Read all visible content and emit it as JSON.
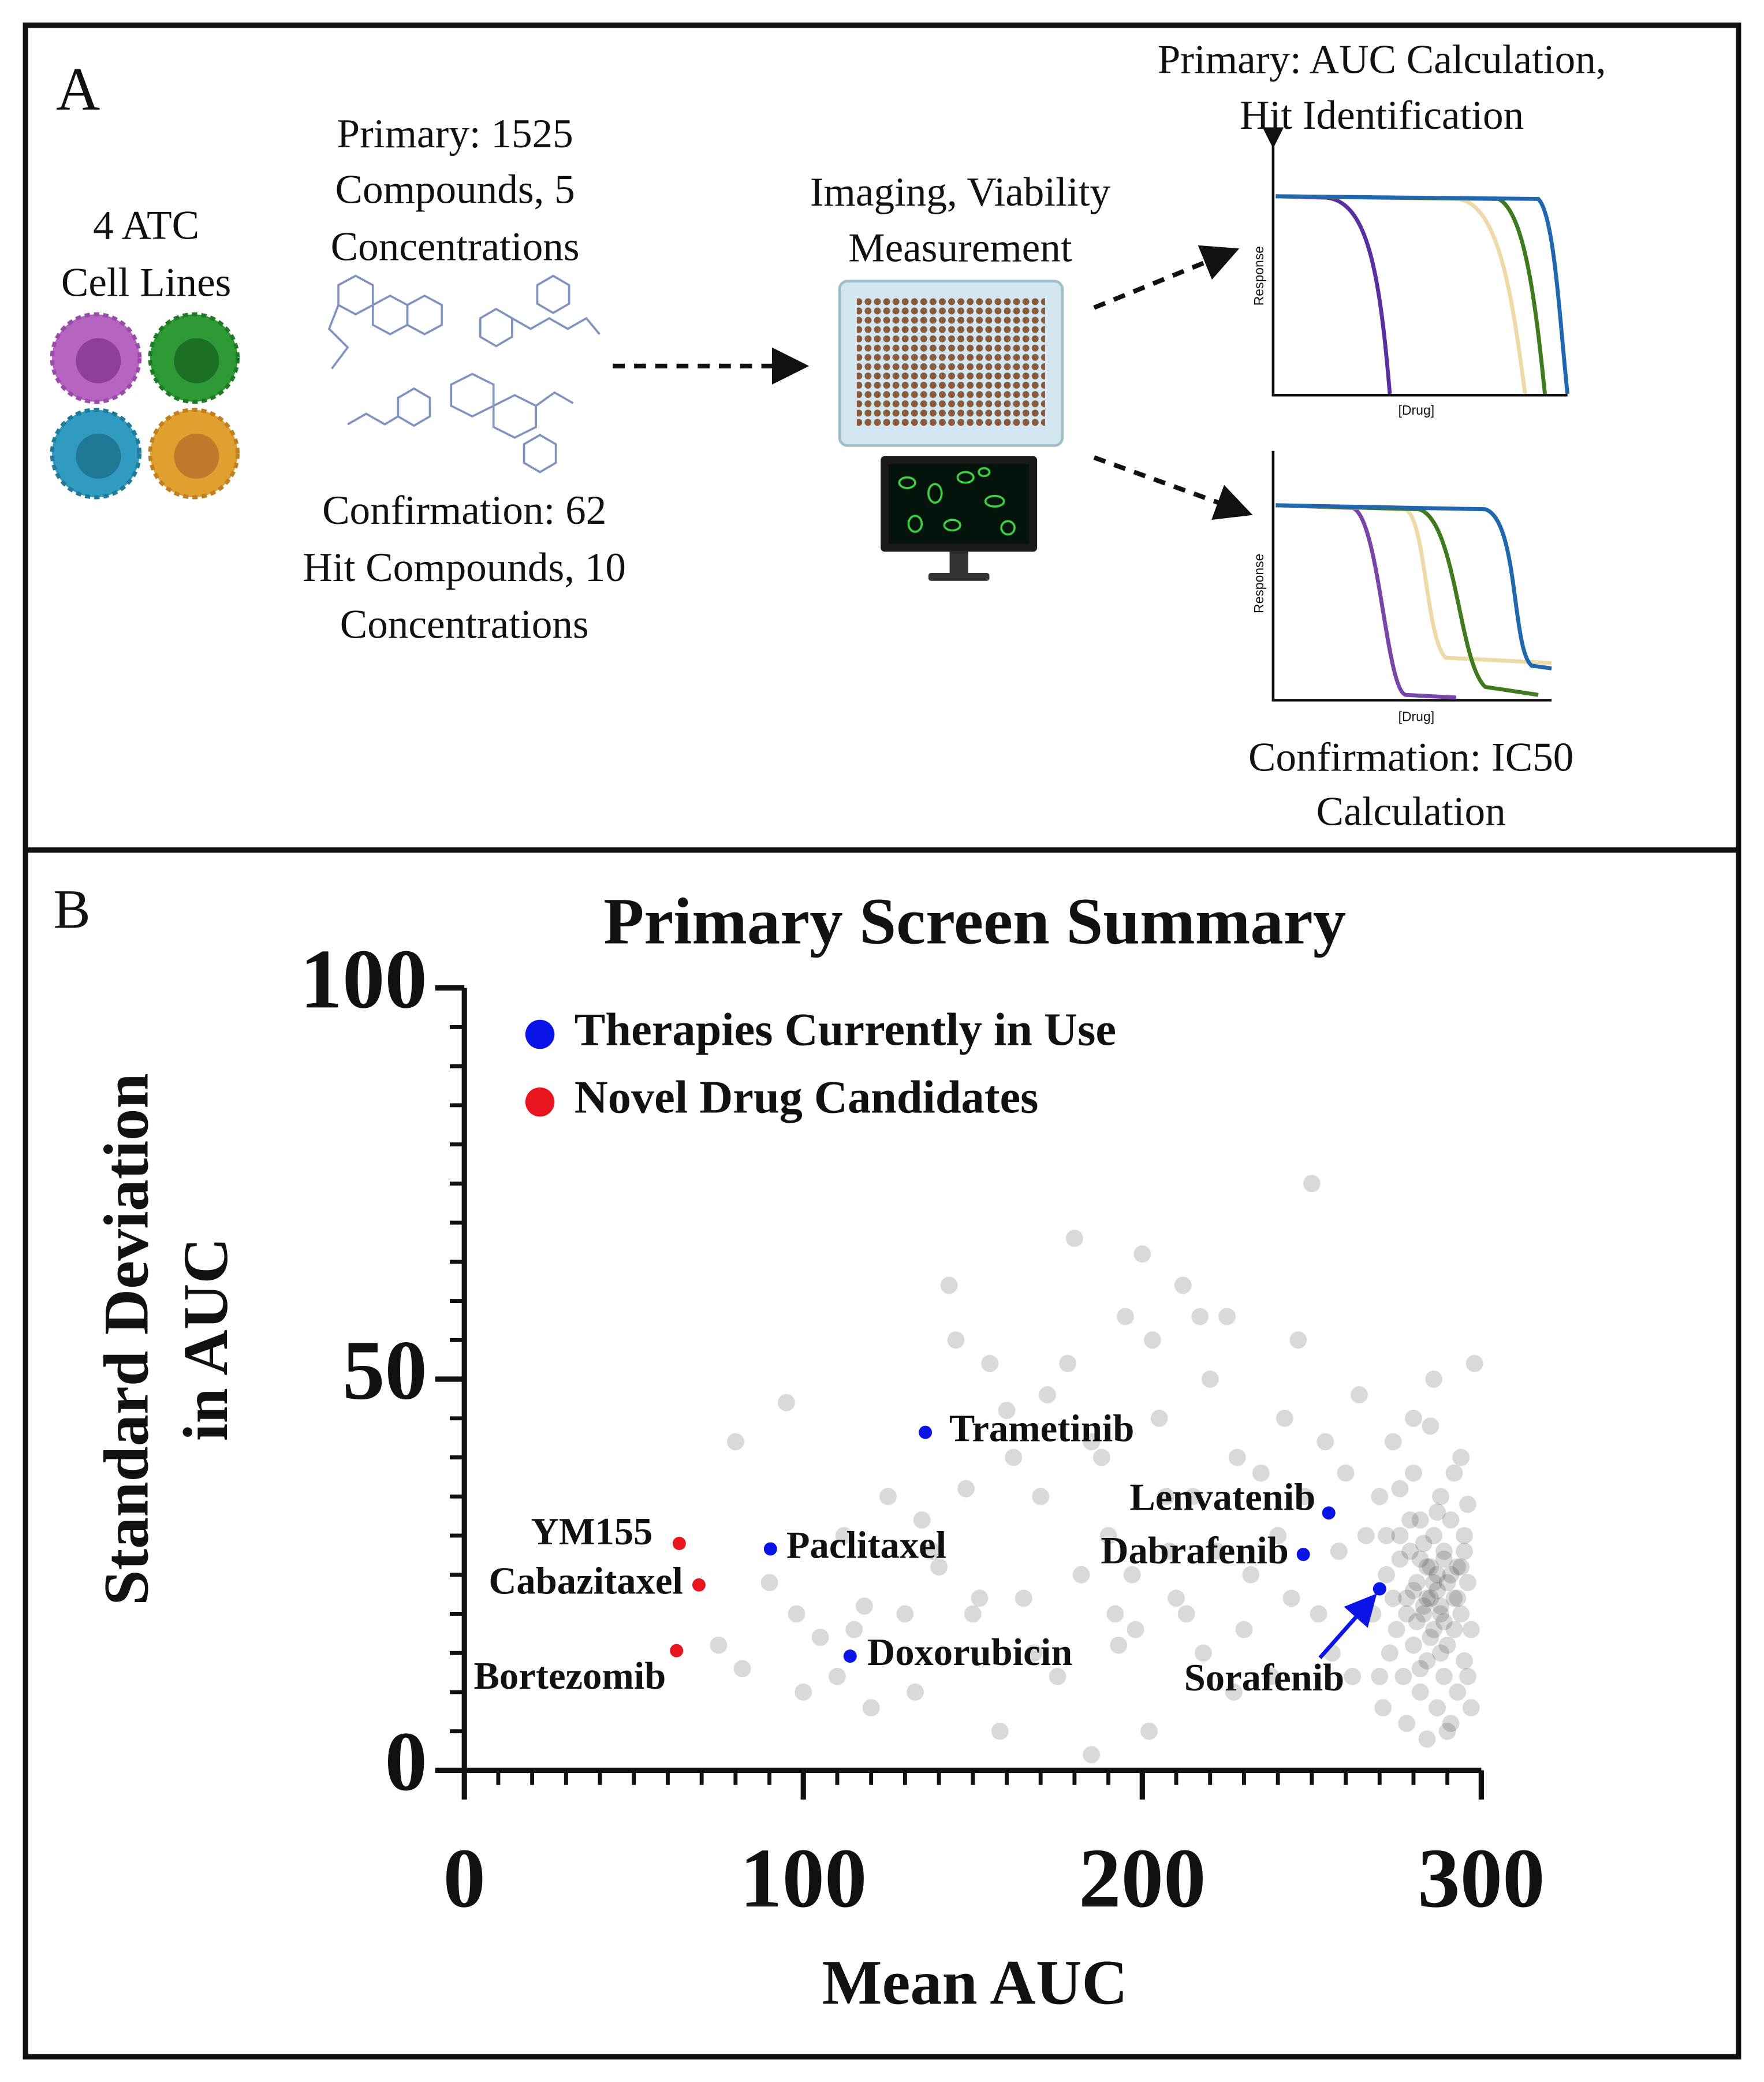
{
  "panel_a": {
    "label": "A",
    "cell_lines": [
      "4 ATC",
      "Cell Lines"
    ],
    "primary_compounds": [
      "Primary: 1525",
      "Compounds, 5",
      "Concentrations"
    ],
    "confirmation_compounds": [
      "Confirmation: 62",
      "Hit Compounds, 10",
      "Concentrations"
    ],
    "imaging": [
      "Imaging, Viability",
      "Measurement"
    ],
    "primary_analysis": [
      "Primary: AUC Calculation,",
      "Hit Identification"
    ],
    "confirmation_analysis": [
      "Confirmation: IC50",
      "Calculation"
    ],
    "plot_primary": {
      "y_label": "Response",
      "x_label": "[Drug]"
    },
    "plot_confirmation": {
      "y_label": "Response",
      "x_label": "[Drug]"
    }
  },
  "panel_b_label": "B",
  "chart_data": {
    "type": "scatter",
    "title": "Primary Screen Summary",
    "x_label": "Mean AUC",
    "y_label": [
      "Standard Deviation",
      "in AUC"
    ],
    "xlim": [
      0,
      300
    ],
    "xticks": [
      0,
      100,
      200,
      300
    ],
    "xminorticks": [
      10,
      20,
      30,
      40,
      50,
      60,
      70,
      80,
      90,
      110,
      120,
      130,
      140,
      150,
      160,
      170,
      180,
      190,
      210,
      220,
      230,
      240,
      250,
      260,
      270,
      280,
      290
    ],
    "ylim": [
      0,
      100
    ],
    "yticks": [
      0,
      50,
      100
    ],
    "yminorticks": [
      5,
      10,
      15,
      20,
      25,
      30,
      35,
      40,
      45,
      55,
      60,
      65,
      70,
      75,
      80,
      85,
      90,
      95
    ],
    "legend": "upper left",
    "series": [
      {
        "name": "Therapies Currently in Use",
        "color": "#0a14e6",
        "labels": [
          "Trametinib",
          "Lenvatenib",
          "Dabrafenib",
          "Sorafenib",
          "Paclitaxel",
          "Doxorubicin"
        ],
        "x": [
          136,
          255,
          247.5,
          270,
          90.3,
          113.8
        ],
        "values": [
          43.2,
          32.9,
          27.6,
          23.2,
          28.3,
          14.6
        ]
      },
      {
        "name": "Novel Drug Candidates",
        "color": "#e8141e",
        "labels": [
          "YM155",
          "Cabazitaxel",
          "Bortezomib"
        ],
        "x": [
          63.4,
          69.2,
          62.6
        ],
        "values": [
          29.0,
          23.7,
          15.3
        ]
      },
      {
        "color": "#000000",
        "opacity": 0.15,
        "x": [
          75,
          80,
          82,
          95,
          98,
          105,
          110,
          112,
          118,
          125,
          130,
          133,
          140,
          145,
          148,
          150,
          155,
          160,
          165,
          170,
          172,
          175,
          180,
          182,
          185,
          188,
          190,
          192,
          195,
          198,
          200,
          202,
          205,
          208,
          210,
          212,
          215,
          218,
          220,
          222,
          225,
          228,
          230,
          232,
          235,
          238,
          240,
          242,
          244,
          246,
          248,
          250,
          252,
          254,
          256,
          258,
          260,
          262,
          264,
          266,
          268,
          270,
          271,
          272,
          273,
          274,
          275,
          276,
          277,
          278,
          279,
          280,
          280,
          281,
          282,
          282,
          283,
          284,
          284,
          285,
          285,
          286,
          286,
          287,
          287,
          288,
          288,
          289,
          289,
          290,
          290,
          291,
          291,
          292,
          292,
          293,
          293,
          294,
          294,
          295,
          295,
          296,
          296,
          297,
          297,
          298,
          276,
          278,
          280,
          283,
          285,
          287,
          289,
          291,
          293,
          295,
          282,
          284,
          286,
          288,
          270,
          272,
          274,
          276,
          278,
          280,
          282,
          284,
          286,
          288,
          290,
          292,
          294,
          296,
          281,
          283,
          285,
          287,
          289,
          279,
          90,
          100,
          115,
          120,
          135,
          138,
          143,
          152,
          158,
          162,
          168,
          178,
          185,
          193,
          197,
          203,
          207,
          213,
          217,
          227
        ],
        "values": [
          16,
          42,
          13,
          47,
          20,
          17,
          12,
          30,
          21,
          35,
          20,
          10,
          26,
          55,
          36,
          20,
          52,
          46,
          22,
          35,
          48,
          12,
          68,
          25,
          2,
          40,
          30,
          20,
          58,
          18,
          66,
          5,
          45,
          28,
          22,
          62,
          35,
          15,
          50,
          28,
          58,
          40,
          18,
          25,
          38,
          12,
          30,
          45,
          22,
          55,
          35,
          75,
          20,
          42,
          15,
          28,
          38,
          12,
          48,
          30,
          20,
          35,
          8,
          25,
          15,
          42,
          18,
          30,
          12,
          22,
          28,
          16,
          38,
          24,
          10,
          32,
          20,
          26,
          14,
          44,
          22,
          18,
          30,
          8,
          25,
          20,
          35,
          12,
          28,
          16,
          24,
          6,
          32,
          22,
          18,
          26,
          10,
          40,
          20,
          14,
          28,
          24,
          34,
          18,
          8,
          52,
          27,
          20,
          23,
          21,
          26,
          23,
          19,
          25,
          22,
          30,
          27,
          22,
          24,
          21,
          12,
          30,
          22,
          36,
          6,
          45,
          13,
          4,
          50,
          15,
          5,
          38,
          26,
          12,
          19,
          29,
          17,
          33,
          27,
          32,
          24,
          10,
          18,
          8,
          32,
          28,
          62,
          22,
          5,
          40,
          15,
          52,
          42,
          16,
          25,
          55,
          35,
          20,
          58,
          10
        ]
      }
    ]
  }
}
